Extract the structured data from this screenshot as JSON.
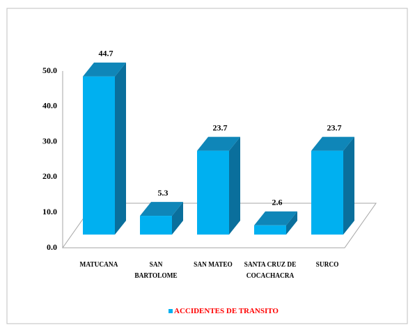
{
  "chart_data": {
    "type": "bar3d",
    "categories": [
      "MATUCANA",
      "SAN BARTOLOME",
      "SAN MATEO",
      "SANTA CRUZ DE COCACHACRA",
      "SURCO"
    ],
    "series": [
      {
        "name": "ACCIDENTES DE TRANSITO",
        "color": "#00b0f0",
        "values": [
          44.7,
          5.3,
          23.7,
          2.6,
          23.7
        ]
      }
    ],
    "ylim": [
      0,
      50
    ],
    "yticks": [
      {
        "value": 0,
        "label": "0.0"
      },
      {
        "value": 10,
        "label": "10.0"
      },
      {
        "value": 20,
        "label": "20.0"
      },
      {
        "value": 30,
        "label": "30.0"
      },
      {
        "value": 40,
        "label": "40.0"
      },
      {
        "value": 50,
        "label": "50.0"
      }
    ],
    "legend": "bottom"
  }
}
